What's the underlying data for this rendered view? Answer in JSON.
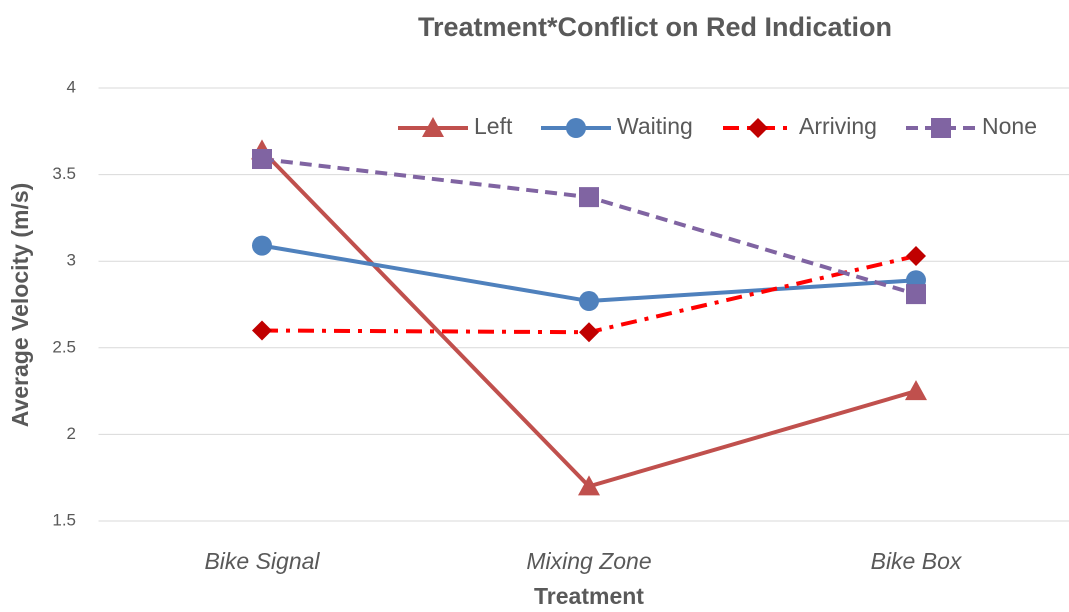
{
  "chart_data": {
    "type": "line",
    "title": "Treatment*Conflict on Red Indication",
    "x_label": "Treatment",
    "y_label": "Average Velocity (m/s)",
    "categories": [
      "Bike Signal",
      "Mixing Zone",
      "Bike Box"
    ],
    "series": [
      {
        "name": "Left",
        "color": "#c0504d",
        "marker_color": "#c0504d",
        "dash": "solid",
        "marker": "triangle",
        "values": [
          3.64,
          1.7,
          2.25
        ]
      },
      {
        "name": "Waiting",
        "color": "#4f81bd",
        "marker_color": "#4f81bd",
        "dash": "solid",
        "marker": "circle",
        "values": [
          3.09,
          2.77,
          2.89
        ]
      },
      {
        "name": "Arriving",
        "color": "#ff0000",
        "marker_color": "#c00000",
        "dash": "dashdot",
        "marker": "diamond",
        "values": [
          2.6,
          2.59,
          3.03
        ]
      },
      {
        "name": "None",
        "color": "#8064a2",
        "marker_color": "#8064a2",
        "dash": "dash",
        "marker": "square",
        "values": [
          3.59,
          3.37,
          2.81
        ]
      }
    ],
    "ylim": [
      1.5,
      4
    ],
    "yticks": [
      1.5,
      2,
      2.5,
      3,
      3.5,
      4
    ],
    "grid": true,
    "legend": "top-right"
  }
}
